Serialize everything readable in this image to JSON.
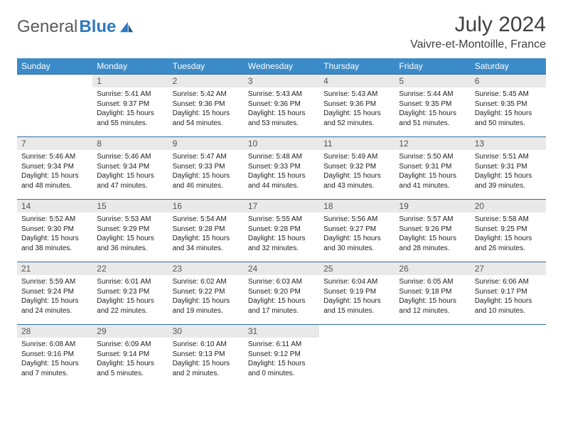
{
  "brand": {
    "part1": "General",
    "part2": "Blue"
  },
  "title": "July 2024",
  "location": "Vaivre-et-Montoille, France",
  "colors": {
    "header_bg": "#3b8bc8",
    "header_fg": "#ffffff",
    "daynum_bg": "#e9e9e9",
    "row_border": "#2f6fa3",
    "text": "#333333",
    "brand_gray": "#5a5a5a",
    "brand_blue": "#2f7abf"
  },
  "typography": {
    "month_title_fontsize": 30,
    "location_fontsize": 16,
    "weekday_fontsize": 12,
    "daynum_fontsize": 12,
    "body_fontsize": 10
  },
  "calendar": {
    "type": "table",
    "weekdays": [
      "Sunday",
      "Monday",
      "Tuesday",
      "Wednesday",
      "Thursday",
      "Friday",
      "Saturday"
    ],
    "weeks": [
      [
        null,
        {
          "n": "1",
          "sunrise": "5:41 AM",
          "sunset": "9:37 PM",
          "day_h": "15",
          "day_m": "55"
        },
        {
          "n": "2",
          "sunrise": "5:42 AM",
          "sunset": "9:36 PM",
          "day_h": "15",
          "day_m": "54"
        },
        {
          "n": "3",
          "sunrise": "5:43 AM",
          "sunset": "9:36 PM",
          "day_h": "15",
          "day_m": "53"
        },
        {
          "n": "4",
          "sunrise": "5:43 AM",
          "sunset": "9:36 PM",
          "day_h": "15",
          "day_m": "52"
        },
        {
          "n": "5",
          "sunrise": "5:44 AM",
          "sunset": "9:35 PM",
          "day_h": "15",
          "day_m": "51"
        },
        {
          "n": "6",
          "sunrise": "5:45 AM",
          "sunset": "9:35 PM",
          "day_h": "15",
          "day_m": "50"
        }
      ],
      [
        {
          "n": "7",
          "sunrise": "5:46 AM",
          "sunset": "9:34 PM",
          "day_h": "15",
          "day_m": "48"
        },
        {
          "n": "8",
          "sunrise": "5:46 AM",
          "sunset": "9:34 PM",
          "day_h": "15",
          "day_m": "47"
        },
        {
          "n": "9",
          "sunrise": "5:47 AM",
          "sunset": "9:33 PM",
          "day_h": "15",
          "day_m": "46"
        },
        {
          "n": "10",
          "sunrise": "5:48 AM",
          "sunset": "9:33 PM",
          "day_h": "15",
          "day_m": "44"
        },
        {
          "n": "11",
          "sunrise": "5:49 AM",
          "sunset": "9:32 PM",
          "day_h": "15",
          "day_m": "43"
        },
        {
          "n": "12",
          "sunrise": "5:50 AM",
          "sunset": "9:31 PM",
          "day_h": "15",
          "day_m": "41"
        },
        {
          "n": "13",
          "sunrise": "5:51 AM",
          "sunset": "9:31 PM",
          "day_h": "15",
          "day_m": "39"
        }
      ],
      [
        {
          "n": "14",
          "sunrise": "5:52 AM",
          "sunset": "9:30 PM",
          "day_h": "15",
          "day_m": "38"
        },
        {
          "n": "15",
          "sunrise": "5:53 AM",
          "sunset": "9:29 PM",
          "day_h": "15",
          "day_m": "36"
        },
        {
          "n": "16",
          "sunrise": "5:54 AM",
          "sunset": "9:28 PM",
          "day_h": "15",
          "day_m": "34"
        },
        {
          "n": "17",
          "sunrise": "5:55 AM",
          "sunset": "9:28 PM",
          "day_h": "15",
          "day_m": "32"
        },
        {
          "n": "18",
          "sunrise": "5:56 AM",
          "sunset": "9:27 PM",
          "day_h": "15",
          "day_m": "30"
        },
        {
          "n": "19",
          "sunrise": "5:57 AM",
          "sunset": "9:26 PM",
          "day_h": "15",
          "day_m": "28"
        },
        {
          "n": "20",
          "sunrise": "5:58 AM",
          "sunset": "9:25 PM",
          "day_h": "15",
          "day_m": "26"
        }
      ],
      [
        {
          "n": "21",
          "sunrise": "5:59 AM",
          "sunset": "9:24 PM",
          "day_h": "15",
          "day_m": "24"
        },
        {
          "n": "22",
          "sunrise": "6:01 AM",
          "sunset": "9:23 PM",
          "day_h": "15",
          "day_m": "22"
        },
        {
          "n": "23",
          "sunrise": "6:02 AM",
          "sunset": "9:22 PM",
          "day_h": "15",
          "day_m": "19"
        },
        {
          "n": "24",
          "sunrise": "6:03 AM",
          "sunset": "9:20 PM",
          "day_h": "15",
          "day_m": "17"
        },
        {
          "n": "25",
          "sunrise": "6:04 AM",
          "sunset": "9:19 PM",
          "day_h": "15",
          "day_m": "15"
        },
        {
          "n": "26",
          "sunrise": "6:05 AM",
          "sunset": "9:18 PM",
          "day_h": "15",
          "day_m": "12"
        },
        {
          "n": "27",
          "sunrise": "6:06 AM",
          "sunset": "9:17 PM",
          "day_h": "15",
          "day_m": "10"
        }
      ],
      [
        {
          "n": "28",
          "sunrise": "6:08 AM",
          "sunset": "9:16 PM",
          "day_h": "15",
          "day_m": "7"
        },
        {
          "n": "29",
          "sunrise": "6:09 AM",
          "sunset": "9:14 PM",
          "day_h": "15",
          "day_m": "5"
        },
        {
          "n": "30",
          "sunrise": "6:10 AM",
          "sunset": "9:13 PM",
          "day_h": "15",
          "day_m": "2"
        },
        {
          "n": "31",
          "sunrise": "6:11 AM",
          "sunset": "9:12 PM",
          "day_h": "15",
          "day_m": "0"
        },
        null,
        null,
        null
      ]
    ]
  },
  "labels": {
    "sunrise": "Sunrise: ",
    "sunset": "Sunset: ",
    "daylight_pre": "Daylight: ",
    "hours": " hours",
    "and": "and ",
    "minutes": " minutes."
  }
}
